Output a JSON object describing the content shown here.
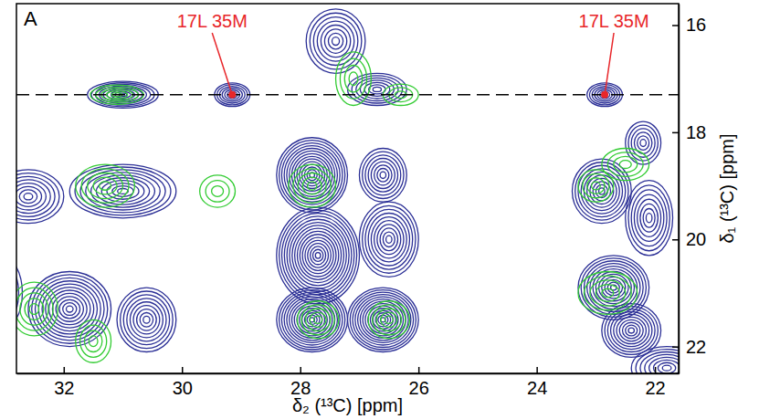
{
  "chart_data": {
    "type": "contour",
    "panel_label": "A",
    "x_label": "δ₂ (¹³C) [ppm]",
    "y_label": "δ₁ (¹³C) [ppm]",
    "xlim": [
      32.8,
      21.6
    ],
    "ylim": [
      15.6,
      22.5
    ],
    "xticks": [
      32,
      30,
      28,
      26,
      24,
      22
    ],
    "yticks": [
      16,
      18,
      20,
      22
    ],
    "guide_line": {
      "y": 17.3,
      "line_style": "dashed"
    },
    "annotations": [
      {
        "text": "17L 35M",
        "x": 29.15,
        "y": 17.3,
        "color": "#e8262a"
      },
      {
        "text": "17L 35M",
        "x": 22.85,
        "y": 17.3,
        "color": "#e8262a"
      }
    ],
    "series": [
      {
        "color": "#2b2f96",
        "x": [
          31.0,
          29.15,
          27.4,
          26.7,
          22.85,
          27.8,
          27.7,
          27.8,
          26.6,
          26.5,
          26.6,
          31.0,
          32.6,
          31.9,
          30.6,
          33.2,
          22.9,
          22.1,
          22.7,
          22.4,
          21.8,
          22.2
        ],
        "y": [
          17.3,
          17.3,
          16.3,
          17.2,
          17.3,
          18.8,
          20.3,
          21.5,
          21.5,
          20.0,
          18.8,
          19.1,
          19.2,
          21.3,
          21.5,
          21.0,
          19.1,
          19.6,
          20.9,
          21.7,
          22.4,
          18.2
        ],
        "width_x": [
          0.6,
          0.3,
          0.5,
          0.5,
          0.3,
          0.6,
          0.7,
          0.6,
          0.6,
          0.5,
          0.4,
          0.9,
          0.6,
          0.7,
          0.5,
          0.5,
          0.5,
          0.4,
          0.6,
          0.5,
          0.6,
          0.3
        ],
        "width_y": [
          0.25,
          0.22,
          0.6,
          0.3,
          0.22,
          0.7,
          0.9,
          0.6,
          0.6,
          0.7,
          0.5,
          0.5,
          0.5,
          0.7,
          0.6,
          0.8,
          0.6,
          0.7,
          0.6,
          0.5,
          0.4,
          0.4
        ],
        "levels": [
          9,
          7,
          8,
          7,
          7,
          14,
          16,
          14,
          14,
          10,
          8,
          10,
          8,
          12,
          9,
          8,
          10,
          8,
          12,
          10,
          8,
          6
        ]
      },
      {
        "color": "#33cc33",
        "x": [
          31.1,
          27.1,
          26.3,
          31.3,
          27.8,
          27.7,
          26.5,
          32.5,
          31.5,
          22.8,
          23.0,
          22.5,
          29.4
        ],
        "y": [
          17.3,
          17.0,
          17.3,
          19.0,
          19.0,
          21.5,
          21.5,
          21.3,
          21.9,
          21.0,
          19.0,
          18.6,
          19.1
        ],
        "width_x": [
          0.45,
          0.3,
          0.3,
          0.5,
          0.4,
          0.35,
          0.35,
          0.4,
          0.3,
          0.5,
          0.3,
          0.4,
          0.3
        ],
        "width_y": [
          0.18,
          0.5,
          0.2,
          0.4,
          0.4,
          0.35,
          0.35,
          0.5,
          0.4,
          0.4,
          0.3,
          0.3,
          0.3
        ],
        "levels": [
          5,
          4,
          3,
          5,
          5,
          5,
          5,
          5,
          4,
          5,
          4,
          4,
          3
        ]
      }
    ]
  }
}
